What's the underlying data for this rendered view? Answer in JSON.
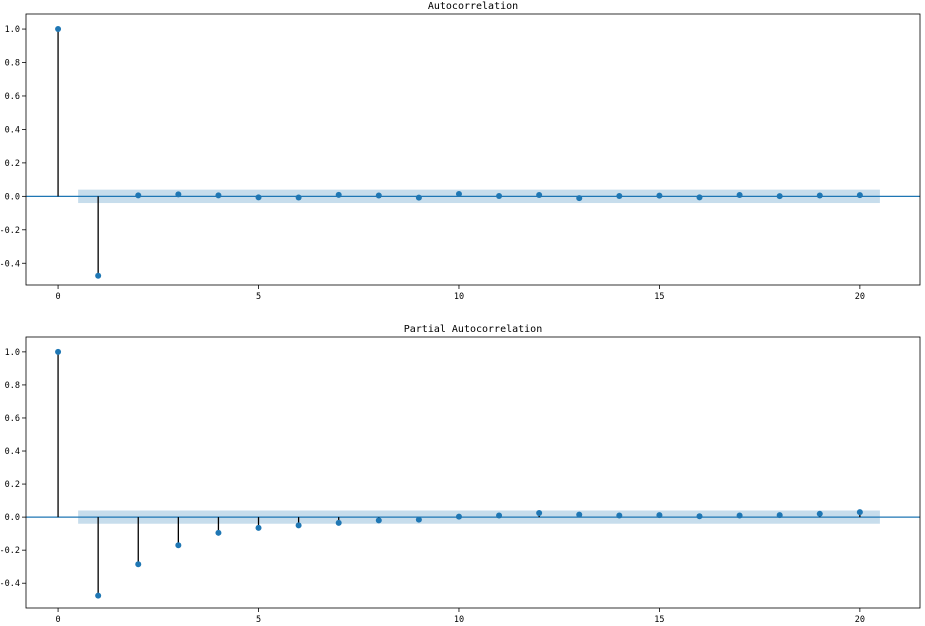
{
  "chart_data": [
    {
      "type": "stem",
      "title": "Autocorrelation",
      "xlim": [
        -0.8,
        21.5
      ],
      "ylim": [
        -0.53,
        1.09
      ],
      "xticks": [
        "0",
        "5",
        "10",
        "15",
        "20"
      ],
      "yticks": [
        "1.0",
        "0.8",
        "0.6",
        "0.4",
        "0.2",
        "0.0",
        "-0.2",
        "-0.4"
      ],
      "lags": [
        0,
        1,
        2,
        3,
        4,
        5,
        6,
        7,
        8,
        9,
        10,
        11,
        12,
        13,
        14,
        15,
        16,
        17,
        18,
        19,
        20
      ],
      "values": [
        1.0,
        -0.475,
        0.006,
        0.012,
        0.006,
        -0.006,
        -0.007,
        0.009,
        0.005,
        -0.008,
        0.014,
        0.002,
        0.008,
        -0.011,
        0.002,
        0.004,
        -0.006,
        0.008,
        0.001,
        0.005,
        0.007
      ],
      "confint": [
        -0.04,
        0.04
      ],
      "grid": false,
      "colors": {
        "marker": "#1f77b4",
        "stem": "#000000",
        "band": "#1f77b4",
        "zero_line": "#1f77b4"
      }
    },
    {
      "type": "stem",
      "title": "Partial Autocorrelation",
      "xlim": [
        -0.8,
        21.5
      ],
      "ylim": [
        -0.55,
        1.09
      ],
      "xticks": [
        "0",
        "5",
        "10",
        "15",
        "20"
      ],
      "yticks": [
        "1.0",
        "0.8",
        "0.6",
        "0.4",
        "0.2",
        "0.0",
        "-0.2",
        "-0.4"
      ],
      "lags": [
        0,
        1,
        2,
        3,
        4,
        5,
        6,
        7,
        8,
        9,
        10,
        11,
        12,
        13,
        14,
        15,
        16,
        17,
        18,
        19,
        20
      ],
      "values": [
        1.0,
        -0.475,
        -0.285,
        -0.17,
        -0.095,
        -0.065,
        -0.05,
        -0.035,
        -0.02,
        -0.015,
        0.003,
        0.01,
        0.025,
        0.015,
        0.01,
        0.012,
        0.005,
        0.01,
        0.012,
        0.02,
        0.03
      ],
      "confint": [
        -0.04,
        0.04
      ],
      "grid": false,
      "colors": {
        "marker": "#1f77b4",
        "stem": "#000000",
        "band": "#1f77b4",
        "zero_line": "#1f77b4"
      }
    }
  ]
}
